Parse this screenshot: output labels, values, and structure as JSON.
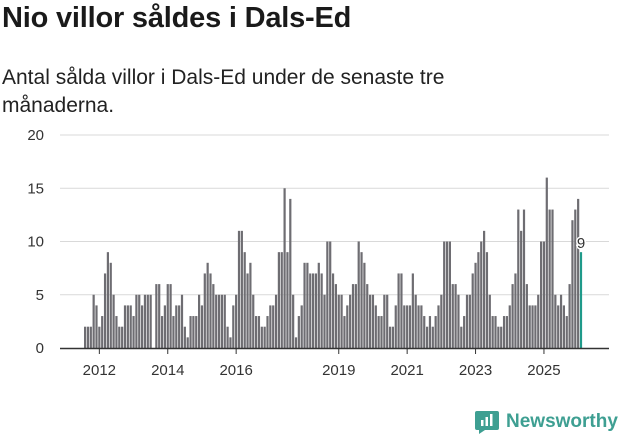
{
  "header": {
    "title": "Nio villor såldes i Dals-Ed",
    "subtitle": "Antal sålda villor i Dals-Ed under de senaste tre månaderna."
  },
  "branding": {
    "name": "Newsworthy",
    "color": "#3e9f92"
  },
  "colors": {
    "bar": "#6e6d72",
    "highlight": "#1f9a8a",
    "grid": "#d9d9d9",
    "axis": "#333333"
  },
  "chart_data": {
    "type": "bar",
    "title": "Nio villor såldes i Dals-Ed",
    "subtitle": "Antal sålda villor i Dals-Ed under de senaste tre månaderna.",
    "xlabel": "",
    "ylabel": "",
    "ylim": [
      0,
      20
    ],
    "yticks": [
      0,
      5,
      10,
      15,
      20
    ],
    "grid": true,
    "xticks": [
      "2012",
      "2014",
      "2016",
      "2019",
      "2021",
      "2023",
      "2025"
    ],
    "xtick_index": [
      5,
      29,
      53,
      89,
      113,
      137,
      161
    ],
    "highlight_label": "9",
    "values": [
      2,
      2,
      2,
      5,
      4,
      2,
      3,
      7,
      9,
      8,
      5,
      3,
      2,
      2,
      4,
      4,
      4,
      3,
      5,
      5,
      4,
      5,
      5,
      5,
      0,
      6,
      6,
      3,
      4,
      6,
      6,
      3,
      4,
      4,
      5,
      2,
      1,
      3,
      3,
      3,
      5,
      4,
      7,
      8,
      7,
      6,
      5,
      5,
      5,
      5,
      2,
      1,
      4,
      5,
      11,
      11,
      9,
      7,
      8,
      5,
      3,
      3,
      2,
      2,
      3,
      4,
      4,
      5,
      9,
      9,
      15,
      9,
      14,
      5,
      1,
      3,
      4,
      8,
      8,
      7,
      7,
      7,
      8,
      7,
      5,
      10,
      10,
      7,
      6,
      5,
      5,
      3,
      4,
      5,
      6,
      6,
      10,
      9,
      8,
      6,
      5,
      5,
      4,
      3,
      3,
      5,
      5,
      2,
      2,
      4,
      7,
      7,
      4,
      4,
      4,
      7,
      5,
      4,
      4,
      3,
      2,
      3,
      2,
      3,
      4,
      5,
      10,
      10,
      10,
      6,
      6,
      5,
      2,
      3,
      5,
      5,
      7,
      8,
      9,
      10,
      11,
      9,
      5,
      3,
      3,
      2,
      2,
      3,
      3,
      4,
      6,
      7,
      13,
      11,
      13,
      6,
      4,
      4,
      4,
      5,
      10,
      10,
      16,
      13,
      13,
      5,
      4,
      5,
      4,
      3,
      6,
      12,
      13,
      14,
      9
    ]
  }
}
